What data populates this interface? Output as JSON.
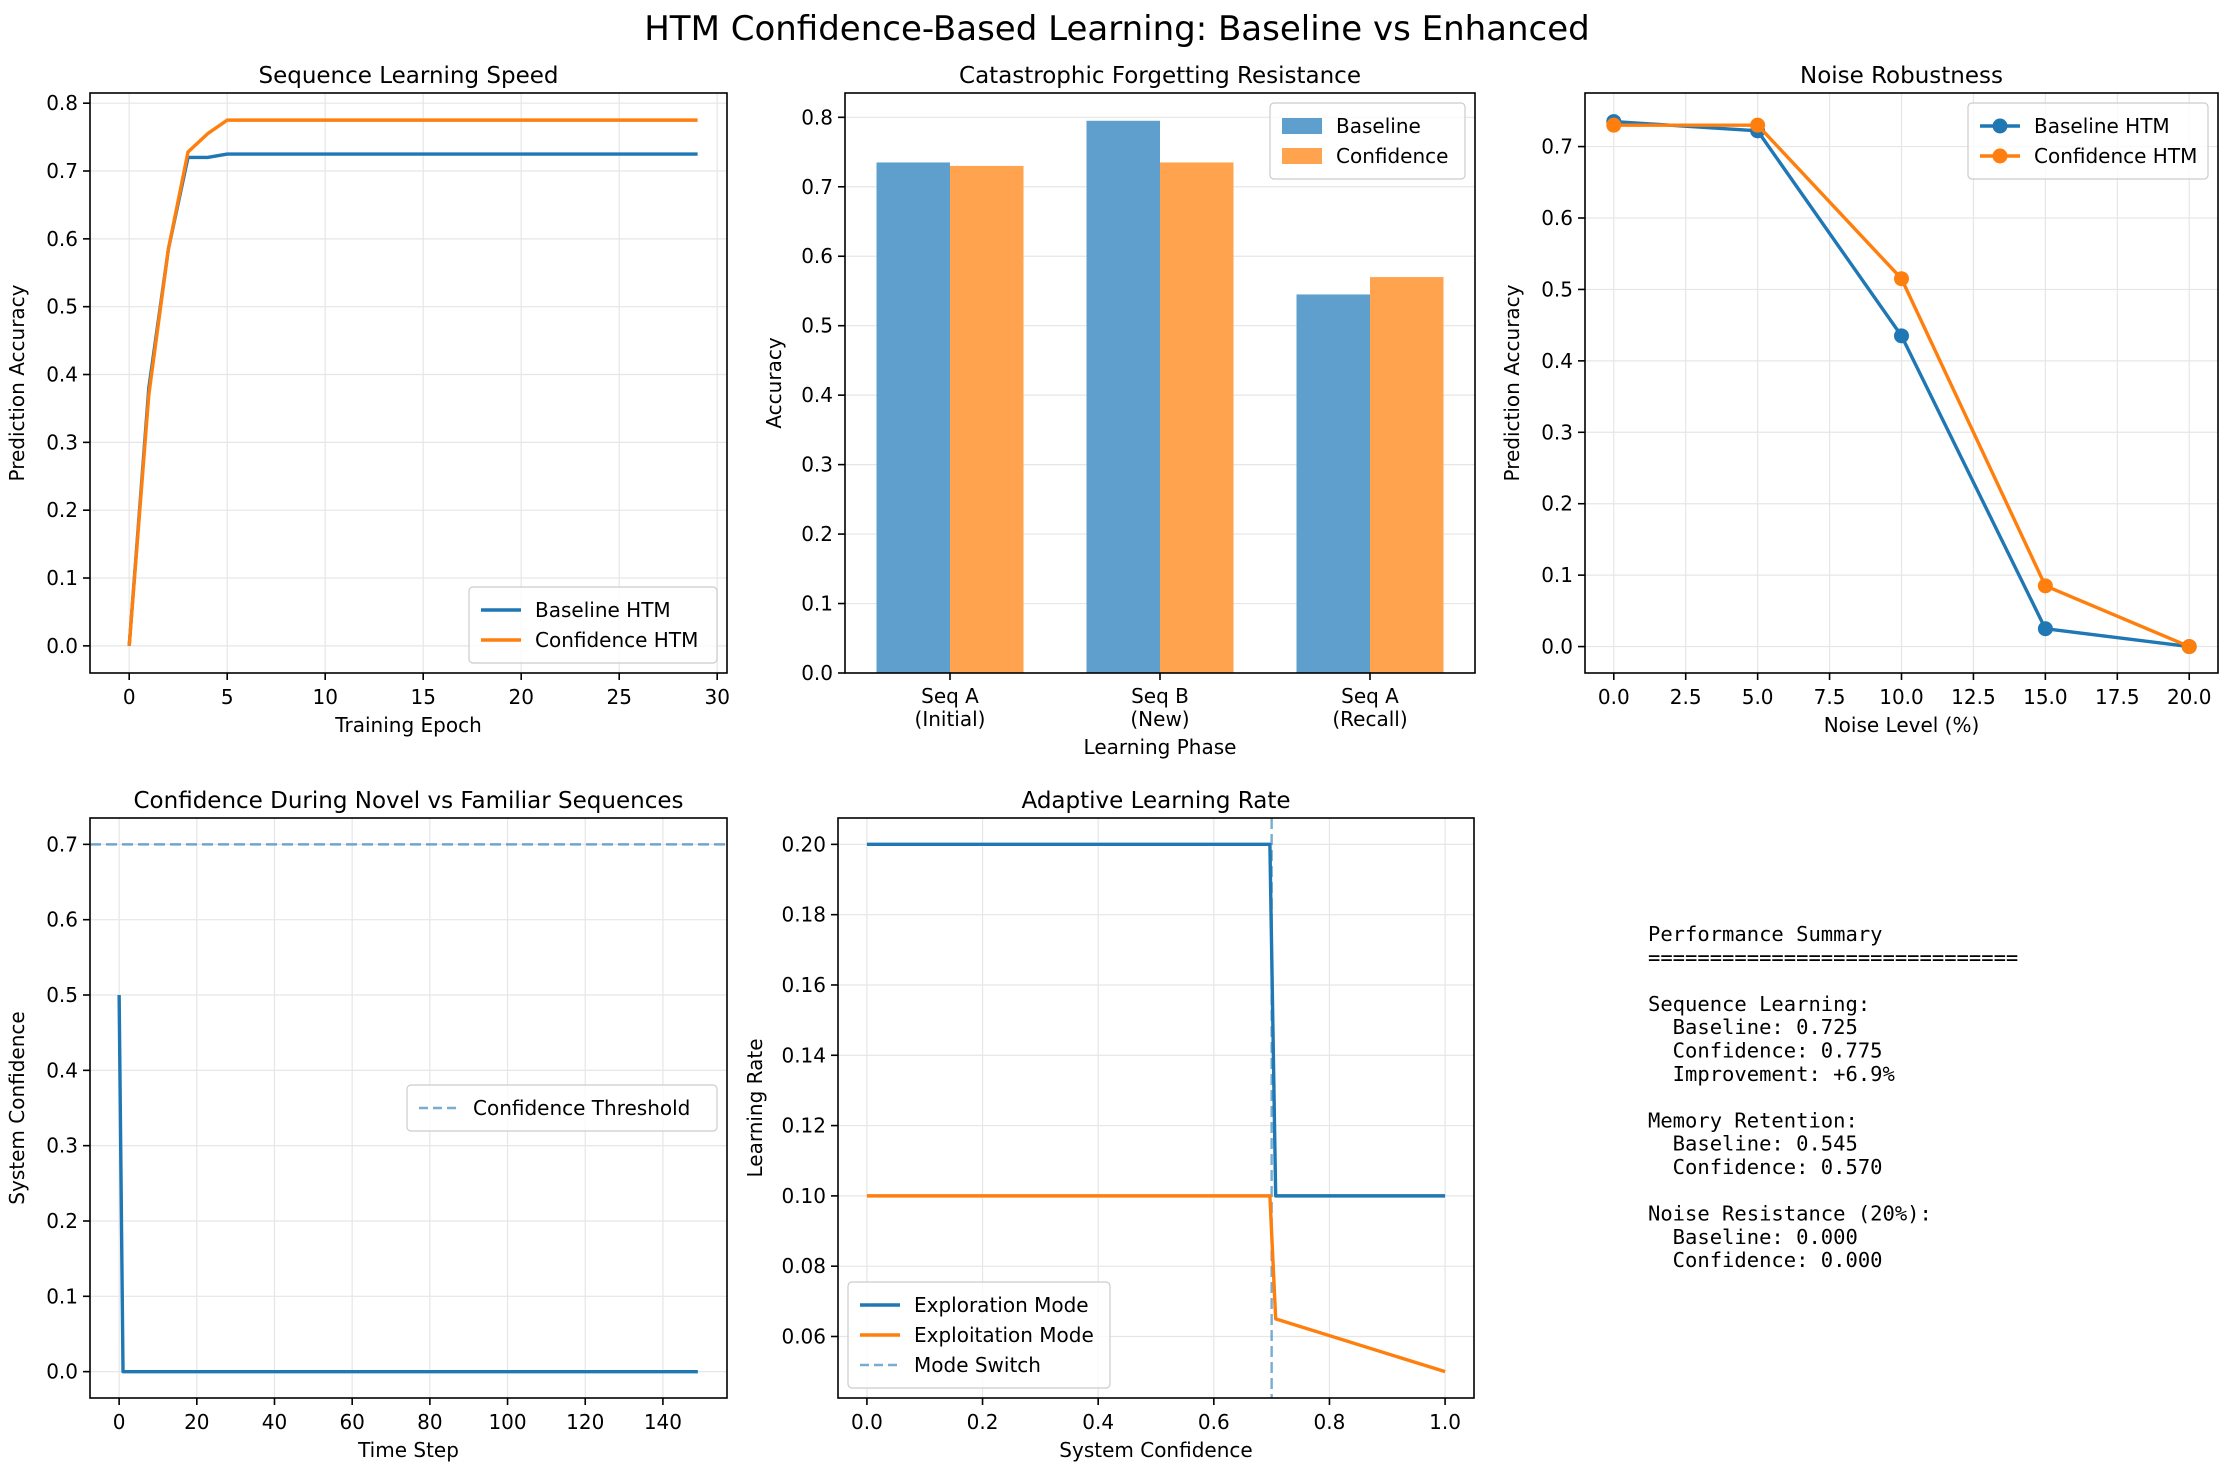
{
  "figure": {
    "title": "HTM Confidence-Based Learning: Baseline vs Enhanced"
  },
  "colors": {
    "blue": "#1f77b4",
    "orange": "#ff7f0e",
    "bar_blue": "#5f9fcd",
    "bar_orange": "#ffa34f",
    "grid": "#e6e6e6"
  },
  "chart_data": [
    {
      "id": "learning_speed",
      "type": "line",
      "title": "Sequence Learning Speed",
      "xlabel": "Training Epoch",
      "ylabel": "Prediction Accuracy",
      "xlim": [
        -2,
        30.5
      ],
      "ylim": [
        -0.04,
        0.815
      ],
      "xticks": [
        0,
        5,
        10,
        15,
        20,
        25,
        30
      ],
      "yticks": [
        0.0,
        0.1,
        0.2,
        0.3,
        0.4,
        0.5,
        0.6,
        0.7,
        0.8
      ],
      "x_tick_labels": [
        "0",
        "5",
        "10",
        "15",
        "20",
        "25",
        "30"
      ],
      "y_tick_labels": [
        "0.0",
        "0.1",
        "0.2",
        "0.3",
        "0.4",
        "0.5",
        "0.6",
        "0.7",
        "0.8"
      ],
      "grid": true,
      "legend": "lower right",
      "series": [
        {
          "name": "Baseline HTM",
          "color": "#1f77b4",
          "x": [
            0,
            1,
            2,
            3,
            4,
            5,
            6,
            7,
            8,
            9,
            10,
            11,
            12,
            13,
            14,
            15,
            16,
            17,
            18,
            19,
            20,
            21,
            22,
            23,
            24,
            25,
            26,
            27,
            28,
            29
          ],
          "y": [
            0.0,
            0.38,
            0.585,
            0.72,
            0.72,
            0.725,
            0.725,
            0.725,
            0.725,
            0.725,
            0.725,
            0.725,
            0.725,
            0.725,
            0.725,
            0.725,
            0.725,
            0.725,
            0.725,
            0.725,
            0.725,
            0.725,
            0.725,
            0.725,
            0.725,
            0.725,
            0.725,
            0.725,
            0.725,
            0.725
          ]
        },
        {
          "name": "Confidence HTM",
          "color": "#ff7f0e",
          "x": [
            0,
            1,
            2,
            3,
            4,
            5,
            6,
            7,
            8,
            9,
            10,
            11,
            12,
            13,
            14,
            15,
            16,
            17,
            18,
            19,
            20,
            21,
            22,
            23,
            24,
            25,
            26,
            27,
            28,
            29
          ],
          "y": [
            0.0,
            0.37,
            0.585,
            0.728,
            0.755,
            0.775,
            0.775,
            0.775,
            0.775,
            0.775,
            0.775,
            0.775,
            0.775,
            0.775,
            0.775,
            0.775,
            0.775,
            0.775,
            0.775,
            0.775,
            0.775,
            0.775,
            0.775,
            0.775,
            0.775,
            0.775,
            0.775,
            0.775,
            0.775,
            0.775
          ]
        }
      ]
    },
    {
      "id": "forgetting",
      "type": "bar",
      "title": "Catastrophic Forgetting Resistance",
      "xlabel": "Learning Phase",
      "ylabel": "Accuracy",
      "categories": [
        [
          "Seq A",
          "(Initial)"
        ],
        [
          "Seq B",
          "(New)"
        ],
        [
          "Seq A",
          "(Recall)"
        ]
      ],
      "ylim": [
        0,
        0.835
      ],
      "yticks": [
        0.0,
        0.1,
        0.2,
        0.3,
        0.4,
        0.5,
        0.6,
        0.7,
        0.8
      ],
      "y_tick_labels": [
        "0.0",
        "0.1",
        "0.2",
        "0.3",
        "0.4",
        "0.5",
        "0.6",
        "0.7",
        "0.8"
      ],
      "grid": true,
      "legend": "upper right",
      "series": [
        {
          "name": "Baseline",
          "color": "#5f9fcd",
          "values": [
            0.735,
            0.795,
            0.545
          ]
        },
        {
          "name": "Confidence",
          "color": "#ffa34f",
          "values": [
            0.73,
            0.735,
            0.57
          ]
        }
      ]
    },
    {
      "id": "noise",
      "type": "line",
      "title": "Noise Robustness",
      "xlabel": "Noise Level (%)",
      "ylabel": "Prediction Accuracy",
      "xlim": [
        -1,
        21
      ],
      "ylim": [
        -0.037,
        0.775
      ],
      "xticks": [
        0,
        2.5,
        5,
        7.5,
        10,
        12.5,
        15,
        17.5,
        20
      ],
      "yticks": [
        0.0,
        0.1,
        0.2,
        0.3,
        0.4,
        0.5,
        0.6,
        0.7
      ],
      "x_tick_labels": [
        "0.0",
        "2.5",
        "5.0",
        "7.5",
        "10.0",
        "12.5",
        "15.0",
        "17.5",
        "20.0"
      ],
      "y_tick_labels": [
        "0.0",
        "0.1",
        "0.2",
        "0.3",
        "0.4",
        "0.5",
        "0.6",
        "0.7"
      ],
      "grid": true,
      "legend": "upper right",
      "markers": true,
      "series": [
        {
          "name": "Baseline HTM",
          "color": "#1f77b4",
          "x": [
            0,
            5,
            10,
            15,
            20
          ],
          "y": [
            0.735,
            0.722,
            0.435,
            0.025,
            0.0
          ]
        },
        {
          "name": "Confidence HTM",
          "color": "#ff7f0e",
          "x": [
            0,
            5,
            10,
            15,
            20
          ],
          "y": [
            0.73,
            0.73,
            0.515,
            0.085,
            0.0
          ]
        }
      ]
    },
    {
      "id": "confidence",
      "type": "line",
      "title": "Confidence During Novel vs Familiar Sequences",
      "xlabel": "Time Step",
      "ylabel": "System Confidence",
      "xlim": [
        -7.5,
        156.5
      ],
      "ylim": [
        -0.035,
        0.735
      ],
      "xticks": [
        0,
        20,
        40,
        60,
        80,
        100,
        120,
        140
      ],
      "yticks": [
        0.0,
        0.1,
        0.2,
        0.3,
        0.4,
        0.5,
        0.6,
        0.7
      ],
      "x_tick_labels": [
        "0",
        "20",
        "40",
        "60",
        "80",
        "100",
        "120",
        "140"
      ],
      "y_tick_labels": [
        "0.0",
        "0.1",
        "0.2",
        "0.3",
        "0.4",
        "0.5",
        "0.6",
        "0.7"
      ],
      "grid": true,
      "legend": "center right",
      "hline": {
        "name": "Confidence Threshold",
        "y": 0.7,
        "color": "#1f77b4"
      },
      "series": [
        {
          "name": "",
          "color": "#1f77b4",
          "x": [
            0,
            1,
            149
          ],
          "y": [
            0.5,
            0.0,
            0.0
          ]
        }
      ]
    },
    {
      "id": "adaptive_lr",
      "type": "line",
      "title": "Adaptive Learning Rate",
      "xlabel": "System Confidence",
      "ylabel": "Learning Rate",
      "xlim": [
        -0.05,
        1.05
      ],
      "ylim": [
        0.0425,
        0.2075
      ],
      "xticks": [
        0.0,
        0.2,
        0.4,
        0.6,
        0.8,
        1.0
      ],
      "yticks": [
        0.06,
        0.08,
        0.1,
        0.12,
        0.14,
        0.16,
        0.18,
        0.2
      ],
      "x_tick_labels": [
        "0.0",
        "0.2",
        "0.4",
        "0.6",
        "0.8",
        "1.0"
      ],
      "y_tick_labels": [
        "0.06",
        "0.08",
        "0.10",
        "0.12",
        "0.14",
        "0.16",
        "0.18",
        "0.20"
      ],
      "grid": true,
      "legend": "lower left",
      "vline": {
        "name": "Mode Switch",
        "x": 0.7,
        "color": "#1f77b4"
      },
      "series": [
        {
          "name": "Exploration Mode",
          "color": "#1f77b4",
          "x": [
            0.0,
            0.697,
            0.707,
            1.0
          ],
          "y": [
            0.2,
            0.2,
            0.1,
            0.1
          ]
        },
        {
          "name": "Exploitation Mode",
          "color": "#ff7f0e",
          "x": [
            0.0,
            0.697,
            0.707,
            1.0
          ],
          "y": [
            0.1,
            0.1,
            0.065,
            0.05
          ]
        }
      ]
    }
  ],
  "summary": {
    "lines": [
      "Performance Summary",
      "==============================",
      "",
      "Sequence Learning:",
      "  Baseline: 0.725",
      "  Confidence: 0.775",
      "  Improvement: +6.9%",
      "",
      "Memory Retention:",
      "  Baseline: 0.545",
      "  Confidence: 0.570",
      "",
      "Noise Resistance (20%):",
      "  Baseline: 0.000",
      "  Confidence: 0.000"
    ]
  }
}
